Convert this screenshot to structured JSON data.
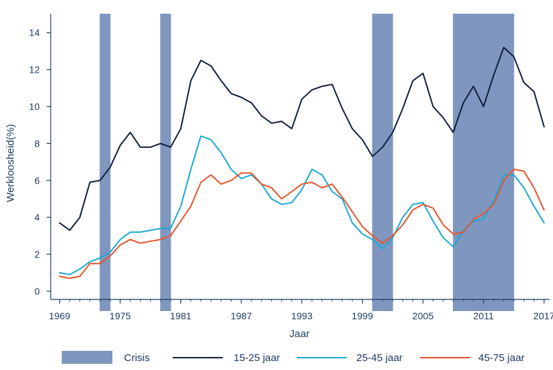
{
  "chart_data": {
    "type": "line",
    "title": "",
    "xlabel": "Jaar",
    "ylabel": "Werkloosheid(%)",
    "xlim": [
      1969,
      2017
    ],
    "ylim": [
      0,
      15
    ],
    "x_ticks": [
      1969,
      1975,
      1981,
      1987,
      1993,
      1999,
      2005,
      2011,
      2017
    ],
    "y_ticks": [
      0,
      2,
      4,
      6,
      8,
      10,
      12,
      14
    ],
    "grid": false,
    "legend_position": "bottom",
    "crisis": {
      "name": "Crisis",
      "color": "#7f97bf",
      "periods": [
        [
          1973,
          1974
        ],
        [
          1979,
          1980
        ],
        [
          2000,
          2002
        ],
        [
          2008,
          2014
        ]
      ]
    },
    "x": [
      1969,
      1970,
      1971,
      1972,
      1973,
      1974,
      1975,
      1976,
      1977,
      1978,
      1979,
      1980,
      1981,
      1982,
      1983,
      1984,
      1985,
      1986,
      1987,
      1988,
      1989,
      1990,
      1991,
      1992,
      1993,
      1994,
      1995,
      1996,
      1997,
      1998,
      1999,
      2000,
      2001,
      2002,
      2003,
      2004,
      2005,
      2006,
      2007,
      2008,
      2009,
      2010,
      2011,
      2012,
      2013,
      2014,
      2015,
      2016,
      2017
    ],
    "series": [
      {
        "name": "15-25 jaar",
        "color": "#0f1f3c",
        "values": [
          3.7,
          3.3,
          4.0,
          5.9,
          6.0,
          6.7,
          7.9,
          8.6,
          7.8,
          7.8,
          8.0,
          7.8,
          8.8,
          11.4,
          12.5,
          12.2,
          11.4,
          10.7,
          10.5,
          10.2,
          9.5,
          9.1,
          9.2,
          8.8,
          10.4,
          10.9,
          11.1,
          11.2,
          9.9,
          8.8,
          8.2,
          7.3,
          7.8,
          8.6,
          9.9,
          11.4,
          11.8,
          10.0,
          9.4,
          8.6,
          10.2,
          11.1,
          10.0,
          11.7,
          13.2,
          12.7,
          11.3,
          10.8,
          8.9
        ]
      },
      {
        "name": "25-45 jaar",
        "color": "#19a9d6",
        "values": [
          1.0,
          0.9,
          1.2,
          1.6,
          1.8,
          2.1,
          2.8,
          3.2,
          3.2,
          3.3,
          3.4,
          3.4,
          4.6,
          6.6,
          8.4,
          8.2,
          7.5,
          6.6,
          6.1,
          6.3,
          5.8,
          5.0,
          4.7,
          4.8,
          5.5,
          6.6,
          6.3,
          5.4,
          5.0,
          3.7,
          3.1,
          2.8,
          2.3,
          2.9,
          4.0,
          4.7,
          4.8,
          3.8,
          2.9,
          2.4,
          3.3,
          3.8,
          3.9,
          4.9,
          6.3,
          6.3,
          5.6,
          4.6,
          3.7
        ]
      },
      {
        "name": "45-75 jaar",
        "color": "#e8542a",
        "values": [
          0.8,
          0.7,
          0.8,
          1.5,
          1.5,
          1.9,
          2.5,
          2.8,
          2.6,
          2.7,
          2.8,
          3.0,
          3.8,
          4.6,
          5.9,
          6.3,
          5.8,
          6.0,
          6.4,
          6.4,
          5.8,
          5.6,
          5.0,
          5.4,
          5.8,
          5.9,
          5.6,
          5.8,
          5.1,
          4.3,
          3.5,
          3.0,
          2.6,
          3.0,
          3.6,
          4.4,
          4.7,
          4.5,
          3.6,
          3.1,
          3.2,
          3.9,
          4.2,
          4.7,
          6.0,
          6.6,
          6.5,
          5.6,
          4.4
        ]
      }
    ]
  }
}
